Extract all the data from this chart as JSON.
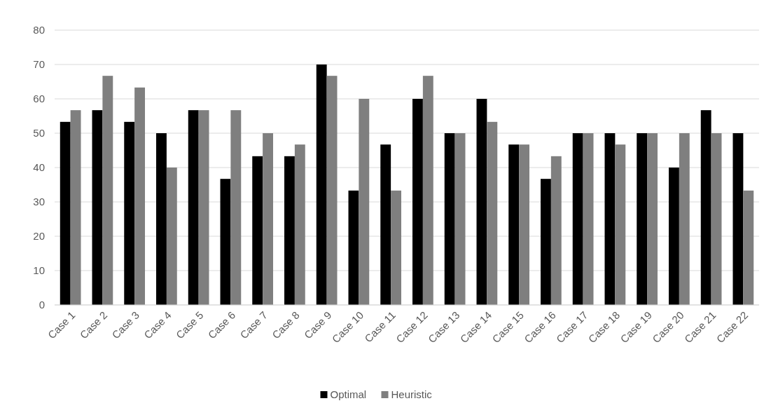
{
  "chart_data": {
    "type": "bar",
    "categories": [
      "Case 1",
      "Case 2",
      "Case 3",
      "Case 4",
      "Case 5",
      "Case 6",
      "Case 7",
      "Case 8",
      "Case 9",
      "Case 10",
      "Case 11",
      "Case 12",
      "Case 13",
      "Case 14",
      "Case 15",
      "Case 16",
      "Case 17",
      "Case 18",
      "Case 19",
      "Case 20",
      "Case 21",
      "Case 22"
    ],
    "series": [
      {
        "name": "Optimal",
        "color": "#000000",
        "values": [
          53.3,
          56.7,
          53.3,
          50,
          56.7,
          36.7,
          43.3,
          43.3,
          70,
          33.3,
          46.7,
          60,
          50,
          60,
          46.7,
          36.7,
          50,
          50,
          50,
          40,
          56.7,
          50
        ]
      },
      {
        "name": "Heuristic",
        "color": "#7f7f7f",
        "values": [
          56.7,
          66.7,
          63.3,
          40,
          56.7,
          56.7,
          50,
          46.7,
          66.7,
          60,
          33.3,
          66.7,
          50,
          53.3,
          46.7,
          43.3,
          50,
          46.7,
          50,
          50,
          50,
          33.3
        ]
      }
    ],
    "ylim": [
      0,
      80
    ],
    "yticks": [
      0,
      10,
      20,
      30,
      40,
      50,
      60,
      70,
      80
    ],
    "grid": "y",
    "legend": "bottom"
  }
}
